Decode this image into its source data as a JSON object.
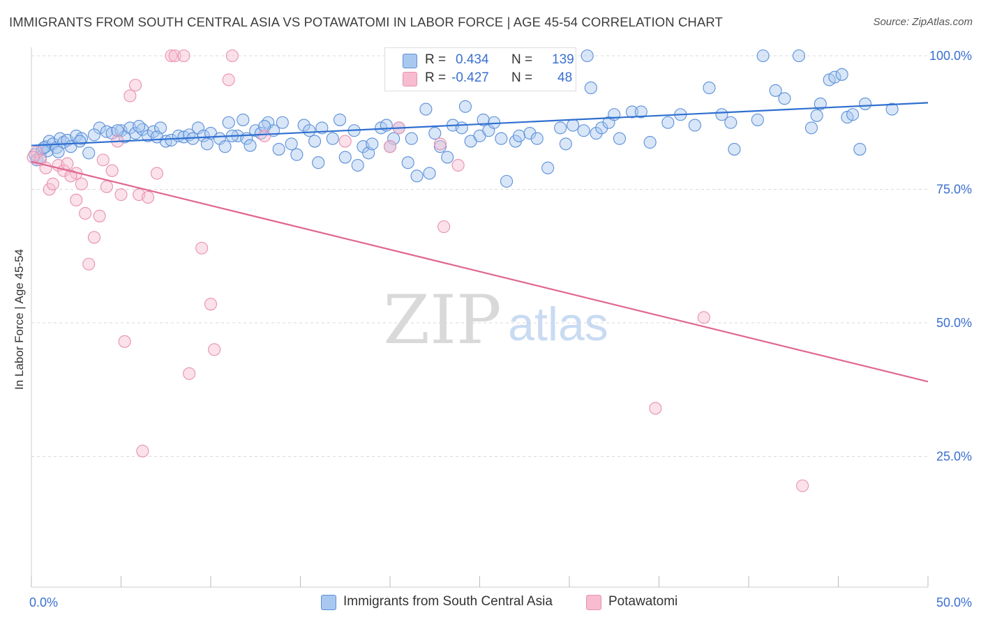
{
  "title": "IMMIGRANTS FROM SOUTH CENTRAL ASIA VS POTAWATOMI IN LABOR FORCE | AGE 45-54 CORRELATION CHART",
  "source": "Source: ZipAtlas.com",
  "watermark": {
    "zip": "ZIP",
    "atlas": "atlas"
  },
  "legend": {
    "r_label": "R =",
    "n_label": "N =",
    "series": [
      {
        "r": "0.434",
        "n": "139"
      },
      {
        "r": "-0.427",
        "n": "48"
      }
    ]
  },
  "bottom_legend": [
    "Immigrants from South Central Asia",
    "Potawatomi"
  ],
  "colors": {
    "blue_fill": "#a9c8f0",
    "blue_stroke": "#5b8fd8",
    "blue_line": "#2f6fd0",
    "pink_fill": "#f7bcd0",
    "pink_stroke": "#e891b0",
    "pink_line": "#e0678f",
    "tick_text": "#3a6fd0",
    "grid": "#d8d8d8"
  },
  "chart_data": {
    "type": "scatter",
    "title": "IMMIGRANTS FROM SOUTH CENTRAL ASIA VS POTAWATOMI IN LABOR FORCE | AGE 45-54 CORRELATION CHART",
    "xlabel": "",
    "ylabel": "In Labor Force | Age 45-54",
    "xlim": [
      0,
      50
    ],
    "ylim": [
      0,
      105
    ],
    "x_tick_labels": [
      "0.0%",
      "50.0%"
    ],
    "y_tick_labels": [
      "100.0%",
      "75.0%",
      "50.0%",
      "25.0%"
    ],
    "y_ticks": [
      100,
      75,
      50,
      25
    ],
    "grid": true,
    "legend_position": "top-center",
    "series": [
      {
        "name": "Immigrants from South Central Asia",
        "r": 0.434,
        "n": 139,
        "trend": {
          "x": [
            0,
            50
          ],
          "y": [
            83.2,
            91.2
          ]
        },
        "points": [
          [
            0.2,
            81.5
          ],
          [
            0.3,
            80.5
          ],
          [
            0.5,
            81.0
          ],
          [
            0.6,
            82.5
          ],
          [
            0.8,
            83.0
          ],
          [
            0.9,
            82.2
          ],
          [
            1.0,
            84.0
          ],
          [
            1.2,
            83.5
          ],
          [
            1.4,
            82.8
          ],
          [
            1.6,
            84.5
          ],
          [
            1.8,
            83.8
          ],
          [
            2.0,
            84.2
          ],
          [
            2.2,
            83.0
          ],
          [
            2.5,
            85.0
          ],
          [
            2.8,
            84.5
          ],
          [
            3.2,
            81.8
          ],
          [
            3.8,
            86.5
          ],
          [
            4.2,
            85.8
          ],
          [
            4.5,
            85.5
          ],
          [
            5.0,
            86.0
          ],
          [
            5.2,
            84.8
          ],
          [
            5.5,
            86.5
          ],
          [
            5.8,
            85.5
          ],
          [
            6.2,
            86.2
          ],
          [
            6.5,
            85.0
          ],
          [
            6.8,
            85.8
          ],
          [
            7.2,
            86.5
          ],
          [
            7.5,
            84.0
          ],
          [
            7.8,
            84.2
          ],
          [
            8.2,
            85.0
          ],
          [
            8.5,
            84.8
          ],
          [
            8.8,
            85.2
          ],
          [
            9.0,
            84.5
          ],
          [
            9.3,
            86.5
          ],
          [
            9.6,
            85.0
          ],
          [
            10.0,
            85.5
          ],
          [
            10.5,
            84.5
          ],
          [
            10.8,
            83.0
          ],
          [
            11.0,
            87.5
          ],
          [
            11.5,
            85.0
          ],
          [
            11.8,
            88.0
          ],
          [
            12.0,
            84.5
          ],
          [
            12.2,
            83.2
          ],
          [
            12.5,
            86.0
          ],
          [
            12.8,
            85.5
          ],
          [
            13.2,
            87.5
          ],
          [
            13.5,
            86.0
          ],
          [
            13.8,
            82.5
          ],
          [
            14.0,
            87.5
          ],
          [
            14.5,
            83.5
          ],
          [
            14.8,
            81.5
          ],
          [
            15.2,
            87.0
          ],
          [
            15.5,
            86.0
          ],
          [
            16.0,
            80.0
          ],
          [
            16.2,
            86.5
          ],
          [
            16.8,
            84.5
          ],
          [
            17.2,
            88.0
          ],
          [
            17.5,
            81.0
          ],
          [
            18.0,
            86.0
          ],
          [
            18.5,
            83.0
          ],
          [
            18.8,
            81.8
          ],
          [
            19.0,
            83.5
          ],
          [
            19.5,
            86.5
          ],
          [
            19.8,
            87.0
          ],
          [
            20.2,
            84.5
          ],
          [
            20.5,
            86.5
          ],
          [
            21.0,
            80.0
          ],
          [
            21.2,
            84.5
          ],
          [
            21.5,
            77.5
          ],
          [
            22.0,
            90.0
          ],
          [
            22.5,
            85.5
          ],
          [
            22.8,
            83.0
          ],
          [
            23.2,
            81.0
          ],
          [
            23.5,
            87.0
          ],
          [
            24.0,
            86.5
          ],
          [
            24.2,
            90.5
          ],
          [
            24.5,
            84.0
          ],
          [
            25.0,
            85.0
          ],
          [
            25.5,
            86.0
          ],
          [
            25.8,
            87.5
          ],
          [
            26.2,
            84.5
          ],
          [
            26.5,
            76.5
          ],
          [
            27.0,
            84.0
          ],
          [
            27.2,
            85.0
          ],
          [
            27.8,
            85.5
          ],
          [
            28.2,
            84.5
          ],
          [
            28.8,
            79.0
          ],
          [
            29.5,
            86.5
          ],
          [
            29.8,
            83.5
          ],
          [
            30.2,
            87.0
          ],
          [
            30.8,
            86.0
          ],
          [
            31.2,
            94.0
          ],
          [
            31.5,
            85.5
          ],
          [
            31.8,
            86.5
          ],
          [
            32.2,
            87.5
          ],
          [
            32.5,
            89.0
          ],
          [
            32.8,
            84.5
          ],
          [
            33.5,
            89.5
          ],
          [
            34.0,
            89.5
          ],
          [
            34.5,
            83.8
          ],
          [
            35.5,
            87.5
          ],
          [
            36.2,
            89.0
          ],
          [
            37.0,
            87.0
          ],
          [
            37.8,
            94.0
          ],
          [
            38.5,
            89.0
          ],
          [
            39.0,
            87.5
          ],
          [
            39.2,
            82.5
          ],
          [
            40.5,
            88.0
          ],
          [
            40.8,
            100.0
          ],
          [
            41.5,
            93.5
          ],
          [
            42.0,
            92.0
          ],
          [
            42.8,
            100.0
          ],
          [
            43.5,
            86.5
          ],
          [
            43.8,
            88.8
          ],
          [
            44.0,
            91.0
          ],
          [
            44.5,
            95.5
          ],
          [
            44.8,
            96.0
          ],
          [
            45.2,
            96.5
          ],
          [
            45.5,
            88.5
          ],
          [
            45.8,
            89.0
          ],
          [
            46.2,
            82.5
          ],
          [
            46.5,
            91.0
          ],
          [
            48.0,
            90.0
          ],
          [
            31.0,
            100.0
          ],
          [
            27.5,
            96.0
          ],
          [
            25.2,
            88.0
          ],
          [
            18.2,
            79.5
          ],
          [
            22.2,
            78.0
          ],
          [
            20.0,
            83.0
          ],
          [
            15.8,
            84.0
          ],
          [
            13.0,
            86.8
          ],
          [
            11.2,
            85.0
          ],
          [
            9.8,
            83.5
          ],
          [
            7.0,
            84.8
          ],
          [
            6.0,
            86.8
          ],
          [
            4.8,
            86.0
          ],
          [
            3.5,
            85.2
          ],
          [
            2.7,
            84.0
          ],
          [
            1.5,
            82.0
          ],
          [
            0.7,
            82.8
          ]
        ]
      },
      {
        "name": "Potawatomi",
        "r": -0.427,
        "n": 48,
        "trend": {
          "x": [
            0,
            50
          ],
          "y": [
            80.2,
            39.0
          ]
        },
        "points": [
          [
            0.3,
            82.0
          ],
          [
            0.5,
            80.5
          ],
          [
            0.8,
            79.0
          ],
          [
            1.0,
            75.0
          ],
          [
            1.2,
            76.0
          ],
          [
            1.5,
            79.5
          ],
          [
            1.8,
            78.5
          ],
          [
            2.0,
            79.8
          ],
          [
            2.5,
            78.0
          ],
          [
            2.2,
            77.5
          ],
          [
            2.8,
            76.0
          ],
          [
            2.5,
            73.0
          ],
          [
            3.0,
            70.5
          ],
          [
            3.2,
            61.0
          ],
          [
            3.5,
            66.0
          ],
          [
            3.8,
            70.0
          ],
          [
            4.0,
            80.5
          ],
          [
            4.2,
            75.5
          ],
          [
            4.5,
            78.5
          ],
          [
            4.8,
            84.0
          ],
          [
            5.0,
            74.0
          ],
          [
            5.5,
            92.5
          ],
          [
            5.8,
            94.5
          ],
          [
            5.2,
            46.5
          ],
          [
            6.0,
            74.0
          ],
          [
            6.5,
            73.5
          ],
          [
            6.2,
            26.0
          ],
          [
            7.0,
            78.0
          ],
          [
            7.8,
            100.0
          ],
          [
            8.0,
            100.0
          ],
          [
            8.5,
            100.0
          ],
          [
            8.8,
            40.5
          ],
          [
            9.5,
            64.0
          ],
          [
            10.0,
            53.5
          ],
          [
            10.2,
            45.0
          ],
          [
            11.0,
            95.5
          ],
          [
            11.2,
            100.0
          ],
          [
            13.0,
            85.0
          ],
          [
            17.5,
            84.0
          ],
          [
            20.0,
            83.0
          ],
          [
            20.5,
            86.5
          ],
          [
            22.8,
            83.5
          ],
          [
            23.0,
            68.0
          ],
          [
            23.8,
            79.5
          ],
          [
            37.5,
            51.0
          ],
          [
            34.8,
            34.0
          ],
          [
            43.0,
            19.5
          ],
          [
            0.1,
            81.0
          ]
        ]
      }
    ]
  }
}
